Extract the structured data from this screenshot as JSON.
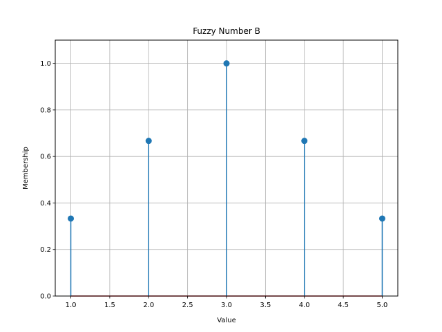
{
  "chart_data": {
    "type": "stem",
    "title": "Fuzzy Number B",
    "xlabel": "Value",
    "ylabel": "Membership",
    "x": [
      1.0,
      2.0,
      3.0,
      4.0,
      5.0
    ],
    "y": [
      0.333,
      0.667,
      1.0,
      0.667,
      0.333
    ],
    "xlim": [
      0.8,
      5.2
    ],
    "ylim": [
      0.0,
      1.1
    ],
    "xticks": [
      "1.0",
      "1.5",
      "2.0",
      "2.5",
      "3.0",
      "3.5",
      "4.0",
      "4.5",
      "5.0"
    ],
    "yticks": [
      "0.0",
      "0.2",
      "0.4",
      "0.6",
      "0.8",
      "1.0"
    ],
    "grid": true,
    "colors": {
      "stem": "#1f77b4",
      "baseline": "#d62728",
      "grid": "#b0b0b0"
    }
  }
}
